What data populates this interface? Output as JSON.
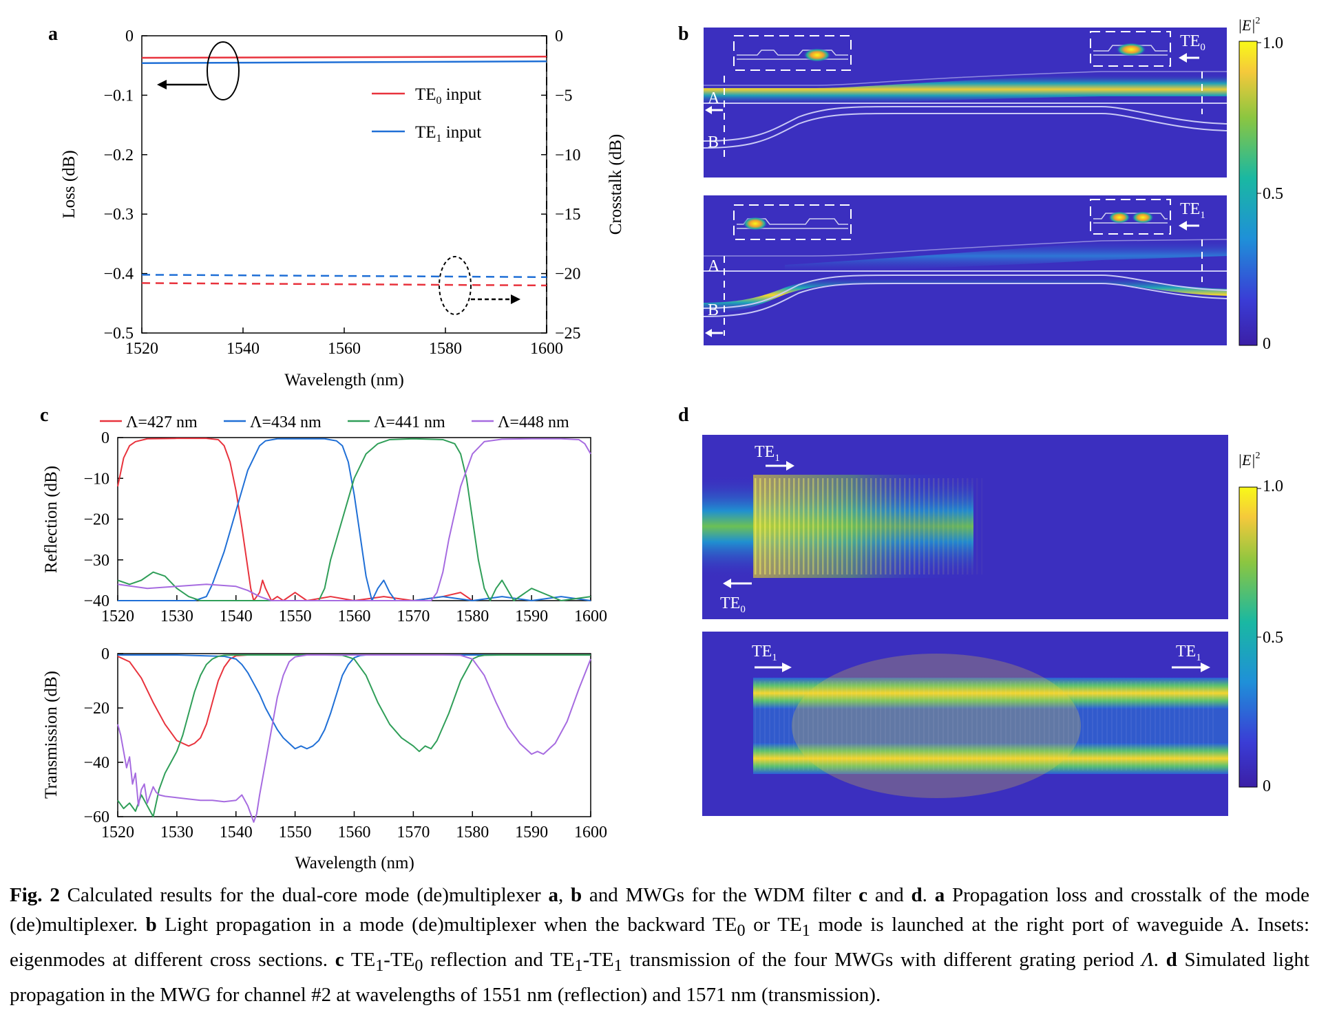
{
  "panels": {
    "a": "a",
    "b": "b",
    "c": "c",
    "d": "d"
  },
  "panel_a": {
    "y_left_label": "Loss (dB)",
    "y_right_label": "Crosstalk (dB)",
    "x_label": "Wavelength (nm)",
    "x_ticks": [
      "1520",
      "1540",
      "1560",
      "1580",
      "1600"
    ],
    "y_left_ticks": [
      "0",
      "−0.1",
      "−0.2",
      "−0.3",
      "−0.4",
      "−0.5"
    ],
    "y_right_ticks": [
      "0",
      "−5",
      "−10",
      "−15",
      "−20",
      "−25"
    ],
    "legend": [
      {
        "mode": "TE",
        "sub": "0",
        "suffix": " input",
        "color": "#e8323c"
      },
      {
        "mode": "TE",
        "sub": "1",
        "suffix": " input",
        "color": "#1f6fd6"
      }
    ]
  },
  "panel_b": {
    "colorbar_label": "|E|",
    "colorbar_sup": "2",
    "colorbar_ticks": [
      "1.0",
      "0.5",
      "0"
    ],
    "top_mode": "TE",
    "top_sub": "0",
    "bottom_mode": "TE",
    "bottom_sub": "1",
    "label_A": "A",
    "label_B": "B"
  },
  "panel_c": {
    "legend": [
      {
        "text": "Λ=427 nm",
        "color": "#e8323c"
      },
      {
        "text": "Λ=434 nm",
        "color": "#1f6fd6"
      },
      {
        "text": "Λ=441 nm",
        "color": "#2f9e58"
      },
      {
        "text": "Λ=448 nm",
        "color": "#a66be0"
      }
    ],
    "top_y_label": "Reflection (dB)",
    "bottom_y_label": "Transmission (dB)",
    "x_label": "Wavelength (nm)",
    "x_ticks": [
      "1520",
      "1530",
      "1540",
      "1550",
      "1560",
      "1570",
      "1580",
      "1590",
      "1600"
    ],
    "top_y_ticks": [
      "0",
      "−10",
      "−20",
      "−30",
      "−40"
    ],
    "bottom_y_ticks": [
      "0",
      "−20",
      "−40",
      "−60"
    ]
  },
  "panel_d": {
    "colorbar_label": "|E|",
    "colorbar_sup": "2",
    "colorbar_ticks": [
      "1.0",
      "0.5",
      "0"
    ],
    "mode": "TE",
    "top_in_sub": "1",
    "top_out_sub": "0",
    "bottom_in_sub": "1",
    "bottom_out_sub": "1"
  },
  "caption": {
    "fig_label": "Fig. 2",
    "t1": " Calculated results for the dual-core mode (de)multiplexer ",
    "a1": "a",
    "t2": ", ",
    "b1": "b",
    "t3": " and MWGs for the WDM filter ",
    "c1": "c",
    "t4": " and ",
    "d1": "d",
    "t5": ". ",
    "a2": "a",
    "t6": " Propagation loss and crosstalk of the mode (de)multiplexer. ",
    "b2": "b",
    "t7": " Light propagation in a mode (de)multiplexer when the backward TE",
    "s1": "0",
    "t8": " or TE",
    "s2": "1",
    "t9": " mode is launched at the right port of waveguide A. Insets: eigenmodes at different cross sections. ",
    "c2": "c",
    "t10": " TE",
    "s3": "1",
    "t11": "-TE",
    "s4": "0",
    "t12": " reflection and TE",
    "s5": "1",
    "t13": "-TE",
    "s6": "1",
    "t14": " transmission of the four MWGs with different grating period ",
    "lam": "Λ",
    "t15": ". ",
    "d2": "d",
    "t16": " Simulated light propagation in the MWG for channel #2 at wavelengths of 1551 nm (reflection) and 1571 nm (transmission)."
  },
  "chart_data": [
    {
      "type": "line",
      "panel": "a",
      "xlabel": "Wavelength (nm)",
      "ylabel": "Loss (dB)",
      "y2label": "Crosstalk (dB)",
      "xlim": [
        1520,
        1600
      ],
      "ylim": [
        -0.5,
        0
      ],
      "y2lim": [
        -25,
        0
      ],
      "series": [
        {
          "name": "TE0 input",
          "axis": "left",
          "style": "solid",
          "color": "#e8323c",
          "x": [
            1520,
            1600
          ],
          "y": [
            -0.037,
            -0.035
          ]
        },
        {
          "name": "TE1 input",
          "axis": "left",
          "style": "solid",
          "color": "#1f6fd6",
          "x": [
            1520,
            1600
          ],
          "y": [
            -0.046,
            -0.043
          ]
        },
        {
          "name": "TE1 input",
          "axis": "right",
          "style": "dashed",
          "color": "#1f6fd6",
          "x": [
            1520,
            1600
          ],
          "y": [
            -20.1,
            -20.3
          ]
        },
        {
          "name": "TE0 input",
          "axis": "right",
          "style": "dashed",
          "color": "#e8323c",
          "x": [
            1520,
            1600
          ],
          "y": [
            -20.8,
            -21.0
          ]
        }
      ]
    },
    {
      "type": "line",
      "panel": "c-top",
      "ylabel": "Reflection (dB)",
      "xlim": [
        1520,
        1600
      ],
      "ylim": [
        -40,
        0
      ],
      "series": [
        {
          "name": "Λ=427 nm",
          "color": "#e8323c",
          "x": [
            1520,
            1521,
            1522,
            1523,
            1525,
            1530,
            1535,
            1537,
            1538,
            1539,
            1540,
            1541,
            1542,
            1542.5,
            1543,
            1544,
            1544.5,
            1545,
            1546,
            1547,
            1548,
            1550,
            1552,
            1556,
            1560,
            1565,
            1570,
            1575,
            1578,
            1580
          ],
          "y": [
            -12,
            -5,
            -2,
            -1,
            -0.3,
            -0.2,
            -0.2,
            -0.5,
            -2,
            -6,
            -13,
            -22,
            -32,
            -37,
            -40,
            -38,
            -35,
            -37,
            -40,
            -39,
            -40,
            -38,
            -40,
            -39,
            -40,
            -39,
            -40,
            -39,
            -38,
            -40
          ]
        },
        {
          "name": "Λ=434 nm",
          "color": "#1f6fd6",
          "x": [
            1520,
            1525,
            1530,
            1533,
            1535,
            1536,
            1538,
            1540,
            1542,
            1544,
            1545,
            1547,
            1550,
            1555,
            1557,
            1558,
            1559,
            1560,
            1561,
            1562,
            1563,
            1564,
            1565,
            1566,
            1567,
            1570,
            1575,
            1580,
            1585,
            1590,
            1595,
            1600
          ],
          "y": [
            -40,
            -40,
            -40,
            -40,
            -39,
            -36,
            -28,
            -18,
            -8,
            -2,
            -0.8,
            -0.3,
            -0.3,
            -0.3,
            -0.8,
            -2,
            -6,
            -14,
            -24,
            -34,
            -40,
            -37,
            -35,
            -38,
            -40,
            -40,
            -39,
            -40,
            -39,
            -40,
            -39,
            -40
          ]
        },
        {
          "name": "Λ=441 nm",
          "color": "#2f9e58",
          "x": [
            1520,
            1522,
            1524,
            1526,
            1528,
            1530,
            1532,
            1534,
            1536,
            1540,
            1545,
            1550,
            1554,
            1555,
            1556,
            1558,
            1560,
            1562,
            1564,
            1566,
            1570,
            1575,
            1577,
            1578,
            1579,
            1580,
            1581,
            1582,
            1583,
            1584,
            1585,
            1587,
            1590,
            1595,
            1600
          ],
          "y": [
            -35,
            -36,
            -35,
            -33,
            -34,
            -37,
            -39,
            -40,
            -40,
            -40,
            -40,
            -40,
            -40,
            -37,
            -30,
            -20,
            -10,
            -4,
            -1.5,
            -0.5,
            -0.3,
            -0.5,
            -1.5,
            -4,
            -10,
            -20,
            -30,
            -37,
            -40,
            -37,
            -35,
            -40,
            -37,
            -40,
            -39
          ]
        },
        {
          "name": "Λ=448 nm",
          "color": "#a66be0",
          "x": [
            1520,
            1525,
            1530,
            1535,
            1540,
            1542,
            1544,
            1546,
            1550,
            1555,
            1560,
            1565,
            1570,
            1573,
            1574,
            1575,
            1576,
            1578,
            1580,
            1582,
            1585,
            1590,
            1595,
            1598,
            1599,
            1600
          ],
          "y": [
            -36,
            -37,
            -36.5,
            -36,
            -36.5,
            -37.5,
            -39,
            -40,
            -40,
            -40,
            -40,
            -40,
            -40,
            -40,
            -38,
            -33,
            -25,
            -12,
            -4,
            -1,
            -0.4,
            -0.3,
            -0.3,
            -0.5,
            -1.5,
            -4
          ]
        }
      ]
    },
    {
      "type": "line",
      "panel": "c-bottom",
      "xlabel": "Wavelength (nm)",
      "ylabel": "Transmission (dB)",
      "xlim": [
        1520,
        1600
      ],
      "ylim": [
        -60,
        0
      ],
      "series": [
        {
          "name": "Λ=427 nm",
          "color": "#e8323c",
          "x": [
            1520,
            1522,
            1524,
            1526,
            1528,
            1530,
            1531,
            1532,
            1533,
            1534,
            1535,
            1536,
            1537,
            1538,
            1539,
            1540,
            1542,
            1545,
            1550,
            1560,
            1570,
            1580,
            1590,
            1600
          ],
          "y": [
            -1,
            -3,
            -9,
            -18,
            -26,
            -32,
            -33,
            -34,
            -33,
            -31,
            -26,
            -18,
            -10,
            -5,
            -2,
            -0.8,
            -0.5,
            -0.5,
            -0.5,
            -0.5,
            -0.5,
            -0.5,
            -0.5,
            -0.5
          ]
        },
        {
          "name": "Λ=434 nm",
          "color": "#1f6fd6",
          "x": [
            1520,
            1530,
            1538,
            1539,
            1540,
            1541,
            1542,
            1543,
            1544,
            1545,
            1546,
            1547,
            1548,
            1549,
            1550,
            1551,
            1552,
            1553,
            1554,
            1555,
            1556,
            1557,
            1558,
            1559,
            1560,
            1561,
            1562,
            1565,
            1570,
            1580,
            1590,
            1600
          ],
          "y": [
            -0.5,
            -0.5,
            -1,
            -1.5,
            -2,
            -4,
            -7,
            -11,
            -15,
            -20,
            -24,
            -28,
            -31,
            -33,
            -35,
            -34,
            -35,
            -34,
            -32,
            -28,
            -22,
            -15,
            -8,
            -4,
            -1.5,
            -0.7,
            -0.5,
            -0.5,
            -0.5,
            -0.5,
            -0.5,
            -0.5
          ]
        },
        {
          "name": "Λ=441 nm",
          "color": "#2f9e58",
          "x": [
            1520,
            1521,
            1522,
            1523,
            1524,
            1525,
            1526,
            1527,
            1528,
            1529,
            1530,
            1531,
            1532,
            1533,
            1534,
            1535,
            1536,
            1537,
            1538,
            1540,
            1545,
            1550,
            1555,
            1558,
            1560,
            1562,
            1564,
            1566,
            1568,
            1570,
            1571,
            1572,
            1573,
            1574,
            1576,
            1578,
            1580,
            1581,
            1582,
            1585,
            1590,
            1600
          ],
          "y": [
            -54,
            -57,
            -55,
            -58,
            -52,
            -56,
            -60,
            -50,
            -44,
            -40,
            -36,
            -30,
            -22,
            -14,
            -8,
            -4,
            -2,
            -1,
            -0.6,
            -0.5,
            -0.5,
            -0.5,
            -0.5,
            -0.6,
            -2,
            -8,
            -18,
            -26,
            -31,
            -34,
            -36,
            -34,
            -35,
            -32,
            -22,
            -10,
            -2,
            -1,
            -0.6,
            -0.5,
            -0.5,
            -0.5
          ]
        },
        {
          "name": "Λ=448 nm",
          "color": "#a66be0",
          "x": [
            1520,
            1520.5,
            1521,
            1521.5,
            1522,
            1522.5,
            1523,
            1523.5,
            1524,
            1524.5,
            1525,
            1525.5,
            1526,
            1526.5,
            1527,
            1528,
            1530,
            1532,
            1534,
            1536,
            1538,
            1540,
            1541,
            1542,
            1543,
            1543.5,
            1544,
            1545,
            1546,
            1547,
            1548,
            1549,
            1550,
            1552,
            1554,
            1556,
            1558,
            1560,
            1565,
            1570,
            1575,
            1578,
            1580,
            1582,
            1584,
            1586,
            1588,
            1589,
            1590,
            1591,
            1592,
            1594,
            1596,
            1598,
            1600
          ],
          "y": [
            -26,
            -30,
            -36,
            -42,
            -38,
            -48,
            -44,
            -56,
            -50,
            -48,
            -55,
            -52,
            -49,
            -51,
            -52,
            -52.5,
            -53,
            -53.5,
            -54,
            -54,
            -54.5,
            -54,
            -52,
            -56,
            -62,
            -59,
            -52,
            -40,
            -28,
            -16,
            -8,
            -3,
            -1.2,
            -0.5,
            -0.5,
            -0.5,
            -0.5,
            -0.5,
            -0.5,
            -0.5,
            -0.5,
            -0.6,
            -2,
            -8,
            -18,
            -27,
            -33,
            -35,
            -37,
            -36,
            -37,
            -33,
            -25,
            -13,
            -2
          ]
        }
      ]
    }
  ]
}
